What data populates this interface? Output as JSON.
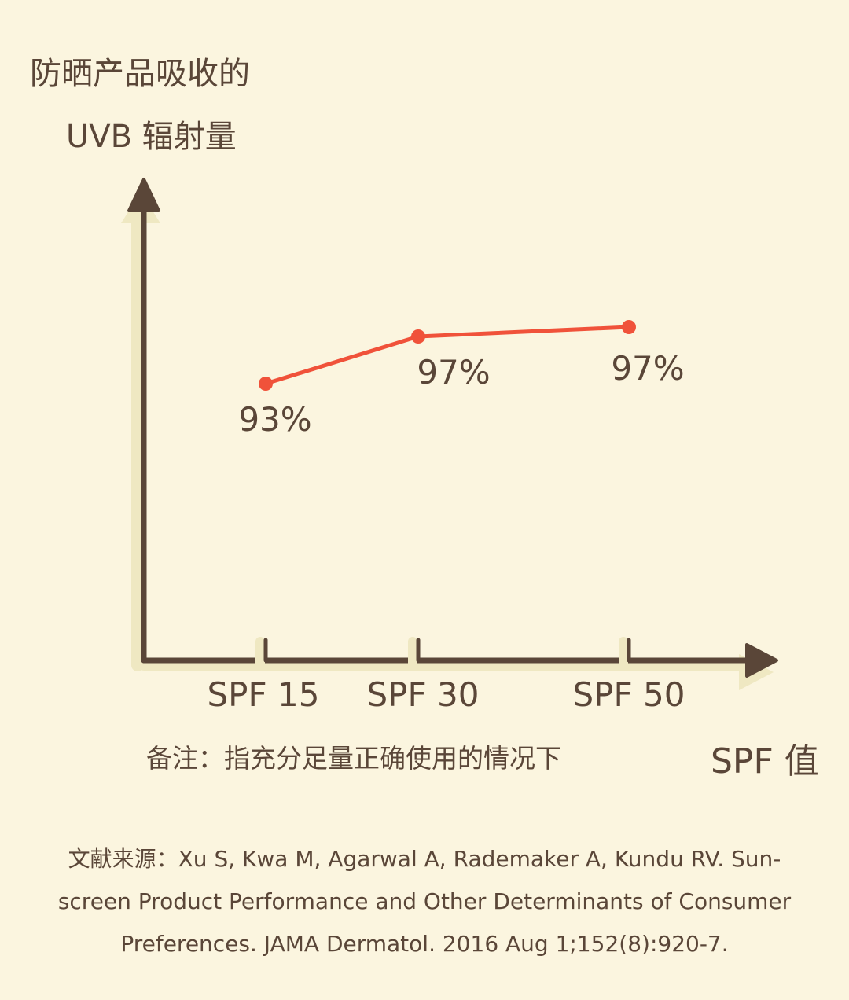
{
  "chart_data": {
    "type": "line",
    "title": "",
    "ylabel_lines": [
      "防晒产品吸收的",
      "UVB 辐射量"
    ],
    "xlabel": "SPF 值",
    "categories": [
      "SPF 15",
      "SPF 30",
      "SPF 50"
    ],
    "series": [
      {
        "values": [
          93,
          97,
          97
        ],
        "value_labels": [
          "93%",
          "97%",
          "97%"
        ],
        "color": "#F0523A"
      }
    ],
    "grid": false,
    "axis_color": "#5A4638",
    "axis_highlight_color": "#EFE8C2"
  },
  "note": "备注：指充分足量正确使用的情况下",
  "reference": "文献来源：Xu S, Kwa M, Agarwal A, Rademaker A, Kundu RV. Sun-screen Product Performance and Other Determinants of Consumer Preferences. JAMA Dermatol. 2016 Aug 1;152(8):920-7."
}
